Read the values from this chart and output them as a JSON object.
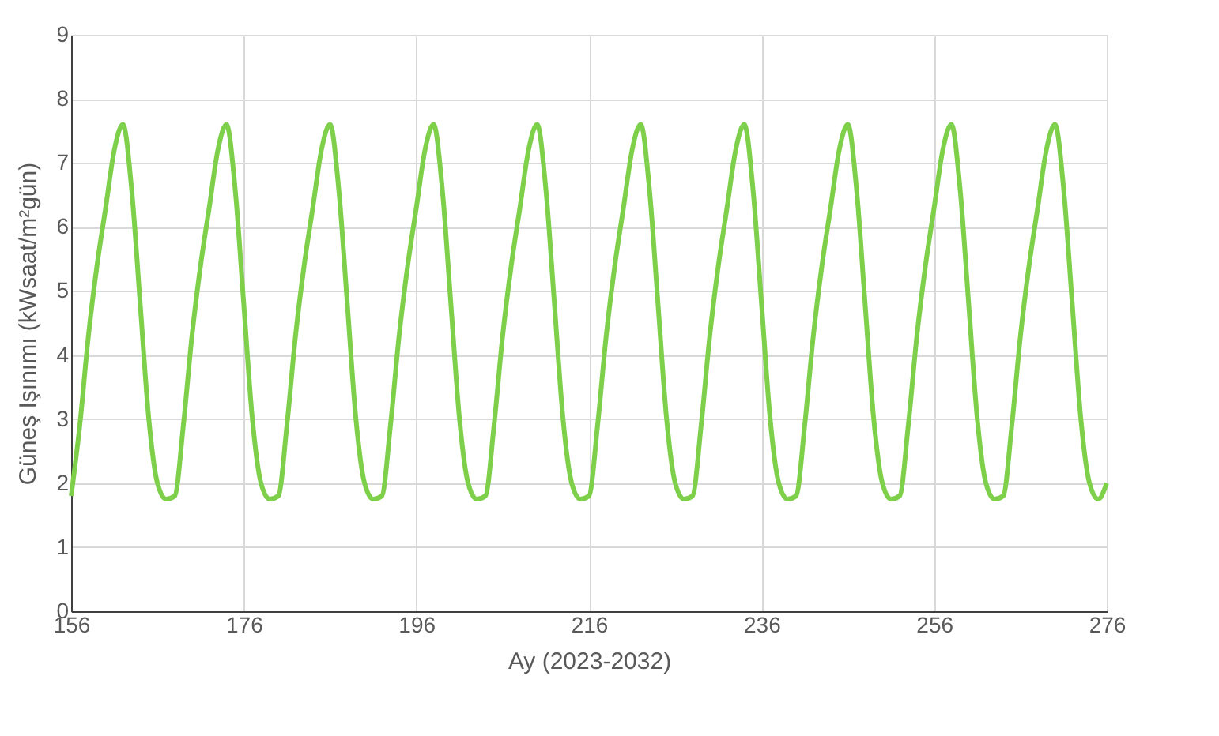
{
  "chart_data": {
    "type": "line",
    "xlabel": "Ay (2023-2032)",
    "ylabel": "Güneş Işınımı (kWsaat/m²gün)",
    "x": [
      156,
      157,
      158,
      159,
      160,
      161,
      162,
      163,
      164,
      165,
      166,
      167,
      168,
      169,
      170,
      171,
      172,
      173,
      174,
      175,
      176,
      177,
      178,
      179,
      180,
      181,
      182,
      183,
      184,
      185,
      186,
      187,
      188,
      189,
      190,
      191,
      192,
      193,
      194,
      195,
      196,
      197,
      198,
      199,
      200,
      201,
      202,
      203,
      204,
      205,
      206,
      207,
      208,
      209,
      210,
      211,
      212,
      213,
      214,
      215,
      216,
      217,
      218,
      219,
      220,
      221,
      222,
      223,
      224,
      225,
      226,
      227,
      228,
      229,
      230,
      231,
      232,
      233,
      234,
      235,
      236,
      237,
      238,
      239,
      240,
      241,
      242,
      243,
      244,
      245,
      246,
      247,
      248,
      249,
      250,
      251,
      252,
      253,
      254,
      255,
      256,
      257,
      258,
      259,
      260,
      261,
      262,
      263,
      264,
      265,
      266,
      267,
      268,
      269,
      270,
      271,
      272,
      273,
      274,
      275,
      276
    ],
    "series": [
      {
        "color": "#7ed04b",
        "values": [
          1.8,
          2.9,
          4.3,
          5.4,
          6.3,
          7.2,
          7.6,
          6.6,
          4.8,
          3.0,
          2.0,
          1.75,
          1.8,
          2.9,
          4.3,
          5.4,
          6.3,
          7.2,
          7.6,
          6.6,
          4.8,
          3.0,
          2.0,
          1.75,
          1.8,
          2.9,
          4.3,
          5.4,
          6.3,
          7.2,
          7.6,
          6.6,
          4.8,
          3.0,
          2.0,
          1.75,
          1.8,
          2.9,
          4.3,
          5.4,
          6.3,
          7.2,
          7.6,
          6.6,
          4.8,
          3.0,
          2.0,
          1.75,
          1.8,
          2.9,
          4.3,
          5.4,
          6.3,
          7.2,
          7.6,
          6.6,
          4.8,
          3.0,
          2.0,
          1.75,
          1.8,
          2.9,
          4.3,
          5.4,
          6.3,
          7.2,
          7.6,
          6.6,
          4.8,
          3.0,
          2.0,
          1.75,
          1.8,
          2.9,
          4.3,
          5.4,
          6.3,
          7.2,
          7.6,
          6.6,
          4.8,
          3.0,
          2.0,
          1.75,
          1.8,
          2.9,
          4.3,
          5.4,
          6.3,
          7.2,
          7.6,
          6.6,
          4.8,
          3.0,
          2.0,
          1.75,
          1.8,
          2.9,
          4.3,
          5.4,
          6.3,
          7.2,
          7.6,
          6.6,
          4.8,
          3.0,
          2.0,
          1.75,
          1.8,
          2.9,
          4.3,
          5.4,
          6.3,
          7.2,
          7.6,
          6.6,
          4.8,
          3.0,
          2.0,
          1.75,
          2.0
        ]
      }
    ],
    "xlim": [
      156,
      276
    ],
    "xticks": [
      156,
      176,
      196,
      216,
      236,
      256,
      276
    ],
    "ylim": [
      0,
      9
    ],
    "yticks": [
      0,
      1,
      2,
      3,
      4,
      5,
      6,
      7,
      8,
      9
    ],
    "grid": true,
    "marker": "none",
    "line_style": "solid"
  }
}
